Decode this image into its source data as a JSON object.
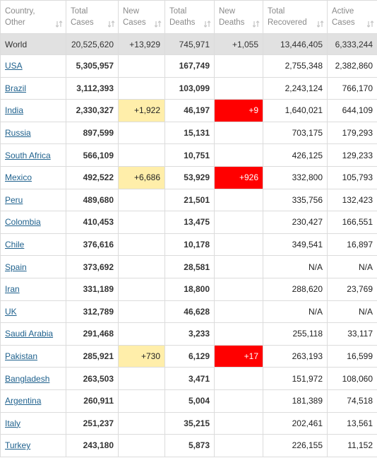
{
  "header": {
    "columns": [
      "Country, Other",
      "Total Cases",
      "New Cases",
      "Total Deaths",
      "New Deaths",
      "Total Recovered",
      "Active Cases"
    ]
  },
  "world": [
    "World",
    "20,525,620",
    "+13,929",
    "745,971",
    "+1,055",
    "13,446,405",
    "6,333,244"
  ],
  "rows": [
    [
      "USA",
      "5,305,957",
      null,
      "167,749",
      null,
      "2,755,348",
      "2,382,860"
    ],
    [
      "Brazil",
      "3,112,393",
      null,
      "103,099",
      null,
      "2,243,124",
      "766,170"
    ],
    [
      "India",
      "2,330,327",
      "+1,922",
      "46,197",
      "+9",
      "1,640,021",
      "644,109"
    ],
    [
      "Russia",
      "897,599",
      null,
      "15,131",
      null,
      "703,175",
      "179,293"
    ],
    [
      "South Africa",
      "566,109",
      null,
      "10,751",
      null,
      "426,125",
      "129,233"
    ],
    [
      "Mexico",
      "492,522",
      "+6,686",
      "53,929",
      "+926",
      "332,800",
      "105,793"
    ],
    [
      "Peru",
      "489,680",
      null,
      "21,501",
      null,
      "335,756",
      "132,423"
    ],
    [
      "Colombia",
      "410,453",
      null,
      "13,475",
      null,
      "230,427",
      "166,551"
    ],
    [
      "Chile",
      "376,616",
      null,
      "10,178",
      null,
      "349,541",
      "16,897"
    ],
    [
      "Spain",
      "373,692",
      null,
      "28,581",
      null,
      "N/A",
      "N/A"
    ],
    [
      "Iran",
      "331,189",
      null,
      "18,800",
      null,
      "288,620",
      "23,769"
    ],
    [
      "UK",
      "312,789",
      null,
      "46,628",
      null,
      "N/A",
      "N/A"
    ],
    [
      "Saudi Arabia",
      "291,468",
      null,
      "3,233",
      null,
      "255,118",
      "33,117"
    ],
    [
      "Pakistan",
      "285,921",
      "+730",
      "6,129",
      "+17",
      "263,193",
      "16,599"
    ],
    [
      "Bangladesh",
      "263,503",
      null,
      "3,471",
      null,
      "151,972",
      "108,060"
    ],
    [
      "Argentina",
      "260,911",
      null,
      "5,004",
      null,
      "181,389",
      "74,518"
    ],
    [
      "Italy",
      "251,237",
      null,
      "35,215",
      null,
      "202,461",
      "13,561"
    ],
    [
      "Turkey",
      "243,180",
      null,
      "5,873",
      null,
      "226,155",
      "11,152"
    ]
  ]
}
